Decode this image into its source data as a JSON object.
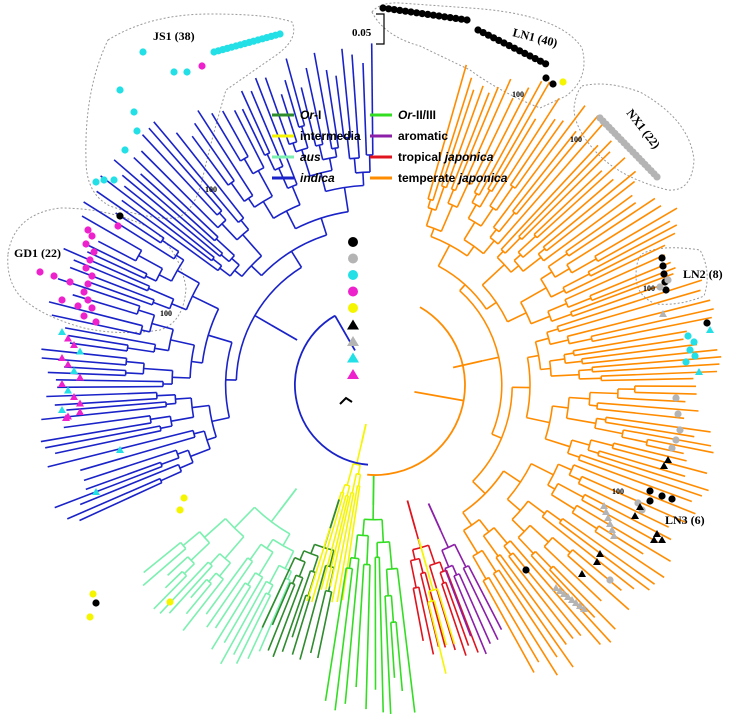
{
  "scale_bar": {
    "label": "0.05"
  },
  "clusters": [
    {
      "id": "ln1",
      "label": "LN1 (40)",
      "bootstrap": "100"
    },
    {
      "id": "nx1",
      "label": "NX1 (22)",
      "bootstrap": "100"
    },
    {
      "id": "ln2",
      "label": "LN2 (8)",
      "bootstrap": "100"
    },
    {
      "id": "ln3",
      "label": "LN3 (6)",
      "bootstrap": "100"
    },
    {
      "id": "js1",
      "label": "JS1 (38)",
      "bootstrap": "100"
    },
    {
      "id": "gd1",
      "label": "GD1 (22)",
      "bootstrap": "100"
    }
  ],
  "legend": [
    {
      "id": "or1",
      "parts": [
        [
          "Or",
          true
        ],
        [
          "-I",
          false
        ]
      ],
      "color": "#2e8b2e"
    },
    {
      "id": "or23",
      "parts": [
        [
          "Or",
          true
        ],
        [
          "-II/III",
          false
        ]
      ],
      "color": "#33dd22"
    },
    {
      "id": "intermedia",
      "parts": [
        [
          "intermedia",
          false
        ]
      ],
      "color": "#f5f500"
    },
    {
      "id": "aromatic",
      "parts": [
        [
          "aromatic",
          false
        ]
      ],
      "color": "#8b1fa8"
    },
    {
      "id": "aus",
      "parts": [
        [
          "aus",
          true
        ]
      ],
      "color": "#7cf0b0"
    },
    {
      "id": "tropical",
      "parts": [
        [
          "tropical ",
          false
        ],
        [
          "japonica",
          true
        ]
      ],
      "color": "#e0141e"
    },
    {
      "id": "indica",
      "parts": [
        [
          "indica",
          true
        ]
      ],
      "color": "#1a23c8"
    },
    {
      "id": "temperate",
      "parts": [
        [
          "temperate ",
          false
        ],
        [
          "japonica",
          true
        ]
      ],
      "color": "#ff8c00"
    }
  ],
  "marker_key": [
    {
      "shape": "circle",
      "color": "#000000"
    },
    {
      "shape": "circle",
      "color": "#b4b4b4"
    },
    {
      "shape": "circle",
      "color": "#22e0e6"
    },
    {
      "shape": "circle",
      "color": "#ee22cc"
    },
    {
      "shape": "circle",
      "color": "#f5f500"
    },
    {
      "shape": "triangle",
      "color": "#000000"
    },
    {
      "shape": "triangle",
      "color": "#b4b4b4"
    },
    {
      "shape": "triangle",
      "color": "#22e0e6"
    },
    {
      "shape": "triangle",
      "color": "#ee22cc"
    }
  ],
  "colors": {
    "indica": "#1a23c8",
    "temperate": "#ff8c00",
    "tropical": "#e0141e",
    "aromatic": "#8b1fa8",
    "intermedia": "#f5f500",
    "aus": "#7cf0b0",
    "or1": "#2e8b2e",
    "or23": "#33dd22",
    "black": "#000000",
    "grey": "#b4b4b4",
    "cyan": "#22e0e6",
    "magenta": "#ee22cc"
  }
}
